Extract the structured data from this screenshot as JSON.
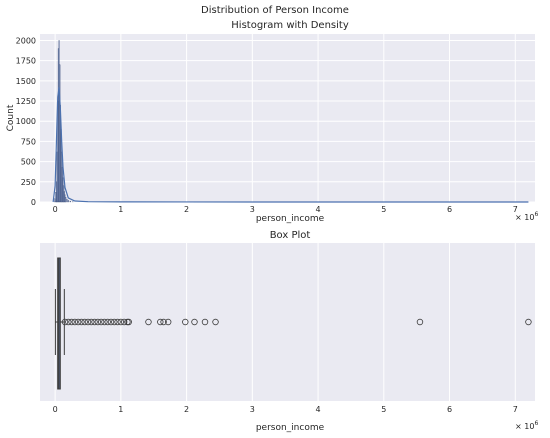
{
  "figure_title": "Distribution of Person Income",
  "colors": {
    "panel_bg": "#eaeaf2",
    "grid": "#ffffff",
    "bar_fill": "#5a77b0",
    "bar_edge": "#3d4f7a",
    "kde_line": "#4c72b0",
    "box_fill": "#4f5d7a",
    "box_edge": "#3c3c3c",
    "outlier_edge": "#3c3c3c"
  },
  "chart_data": [
    {
      "type": "histogram",
      "title": "Histogram with Density",
      "xlabel": "person_income",
      "ylabel": "Count",
      "x_scale_label": "× 10",
      "x_scale_exp": "6",
      "xlim": [
        -0.23,
        7.3
      ],
      "ylim": [
        0,
        2080
      ],
      "x_ticks": [
        0,
        1,
        2,
        3,
        4,
        5,
        6,
        7
      ],
      "y_ticks": [
        0,
        250,
        500,
        750,
        1000,
        1250,
        1500,
        1750,
        2000
      ],
      "grid": true,
      "bins": [
        {
          "x": -0.02,
          "count": 0
        },
        {
          "x": -0.005,
          "count": 40
        },
        {
          "x": 0.01,
          "count": 120
        },
        {
          "x": 0.02,
          "count": 250
        },
        {
          "x": 0.03,
          "count": 620
        },
        {
          "x": 0.04,
          "count": 1250
        },
        {
          "x": 0.05,
          "count": 1900
        },
        {
          "x": 0.06,
          "count": 2000
        },
        {
          "x": 0.07,
          "count": 1700
        },
        {
          "x": 0.08,
          "count": 1200
        },
        {
          "x": 0.09,
          "count": 900
        },
        {
          "x": 0.1,
          "count": 620
        },
        {
          "x": 0.11,
          "count": 430
        },
        {
          "x": 0.12,
          "count": 300
        },
        {
          "x": 0.13,
          "count": 200
        },
        {
          "x": 0.14,
          "count": 130
        },
        {
          "x": 0.15,
          "count": 90
        },
        {
          "x": 0.16,
          "count": 60
        },
        {
          "x": 0.18,
          "count": 35
        },
        {
          "x": 0.2,
          "count": 20
        },
        {
          "x": 0.23,
          "count": 10
        },
        {
          "x": 0.27,
          "count": 5
        }
      ],
      "density_curve": {
        "x": [
          -0.03,
          0.0,
          0.02,
          0.04,
          0.06,
          0.08,
          0.1,
          0.12,
          0.15,
          0.2,
          0.3,
          0.5,
          1.0,
          2.0,
          3.0,
          4.0,
          5.0,
          6.0,
          7.2
        ],
        "y": [
          0,
          200,
          750,
          1300,
          1420,
          1150,
          750,
          430,
          180,
          50,
          12,
          4,
          2,
          1,
          0,
          0,
          0,
          0,
          0
        ]
      }
    },
    {
      "type": "box",
      "title": "Box Plot",
      "xlabel": "person_income",
      "x_scale_label": "× 10",
      "x_scale_exp": "6",
      "xlim": [
        -0.23,
        7.3
      ],
      "x_ticks": [
        0,
        1,
        2,
        3,
        4,
        5,
        6,
        7
      ],
      "grid": true,
      "whisker_low": 0.004,
      "q1": 0.039,
      "median": 0.055,
      "q3": 0.079,
      "whisker_high": 0.14,
      "outliers": [
        0.15,
        0.2,
        0.25,
        0.3,
        0.35,
        0.4,
        0.45,
        0.5,
        0.55,
        0.6,
        0.65,
        0.7,
        0.75,
        0.8,
        0.85,
        0.9,
        0.95,
        1.0,
        1.05,
        1.1,
        1.12,
        1.42,
        1.6,
        1.65,
        1.72,
        1.98,
        2.12,
        2.28,
        2.44,
        5.55,
        7.2
      ]
    }
  ]
}
